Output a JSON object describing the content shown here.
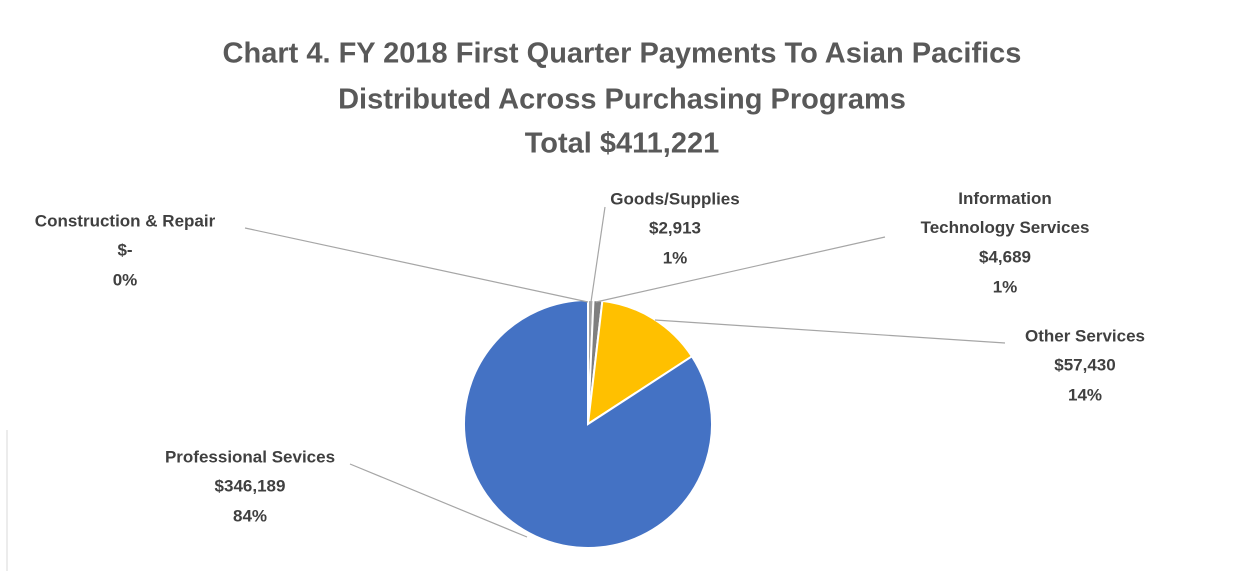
{
  "chart_data": {
    "type": "pie",
    "title": [
      "Chart 4. FY 2018 First Quarter Payments To Asian Pacifics",
      "Distributed Across Purchasing Programs",
      "Total $411,221"
    ],
    "categories": [
      "Construction & Repair",
      "Goods/Supplies",
      "Information Technology Services",
      "Other Services",
      "Professional Sevices"
    ],
    "values": [
      0,
      2913,
      4689,
      57430,
      346189
    ],
    "value_labels": [
      "$-",
      "$2,913",
      "$4,689",
      "$57,430",
      "$346,189"
    ],
    "percent_labels": [
      "0%",
      "1%",
      "1%",
      "14%",
      "84%"
    ],
    "colors": [
      "#ED7D31",
      "#A5A5A5",
      "#7F7F7F",
      "#FFC000",
      "#4472C4"
    ]
  }
}
